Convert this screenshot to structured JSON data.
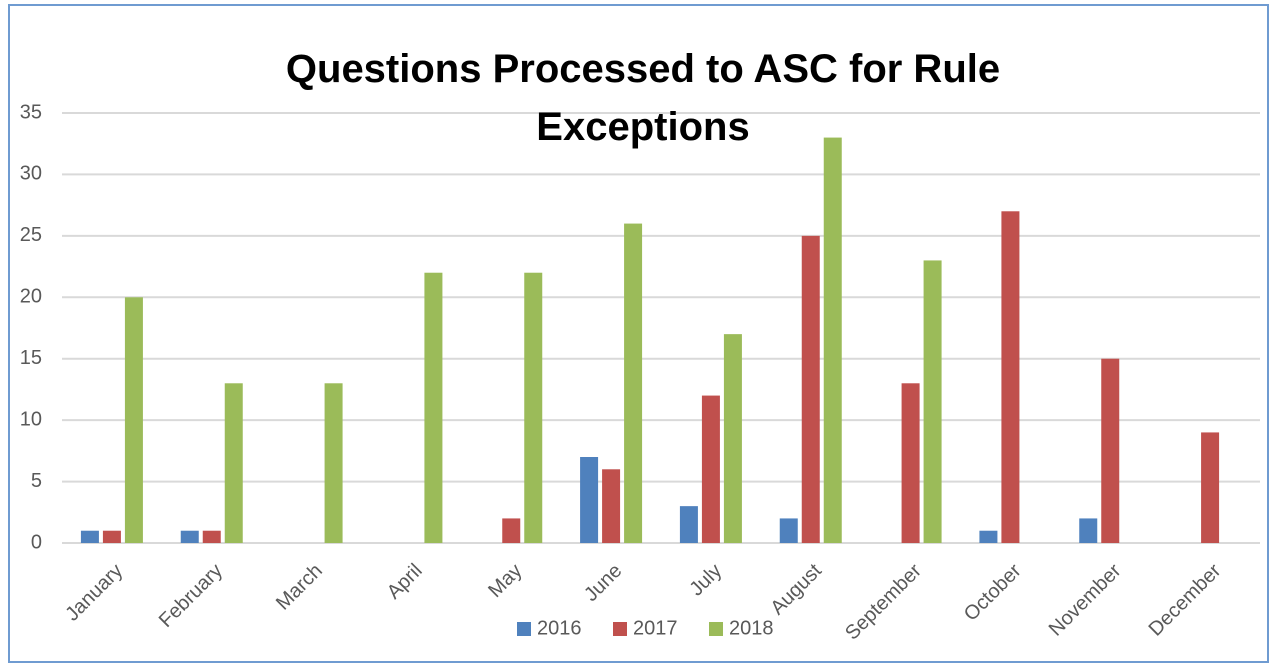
{
  "chart_data": {
    "type": "bar",
    "title": "Questions Processed to ASC for Rule Exceptions",
    "categories": [
      "January",
      "February",
      "March",
      "April",
      "May",
      "June",
      "July",
      "August",
      "September",
      "October",
      "November",
      "December"
    ],
    "series": [
      {
        "name": "2016",
        "color": "#4f81bd",
        "values": [
          1,
          1,
          null,
          null,
          null,
          7,
          3,
          2,
          null,
          1,
          2,
          null
        ]
      },
      {
        "name": "2017",
        "color": "#c0504d",
        "values": [
          1,
          1,
          null,
          null,
          2,
          6,
          12,
          25,
          13,
          27,
          15,
          9
        ]
      },
      {
        "name": "2018",
        "color": "#9bbb59",
        "values": [
          20,
          13,
          13,
          22,
          22,
          26,
          17,
          33,
          23,
          null,
          null,
          null
        ]
      }
    ],
    "ylim": [
      0,
      35
    ],
    "yticks": [
      0,
      5,
      10,
      15,
      20,
      25,
      30,
      35
    ],
    "grid": true,
    "legend": "bottom"
  }
}
